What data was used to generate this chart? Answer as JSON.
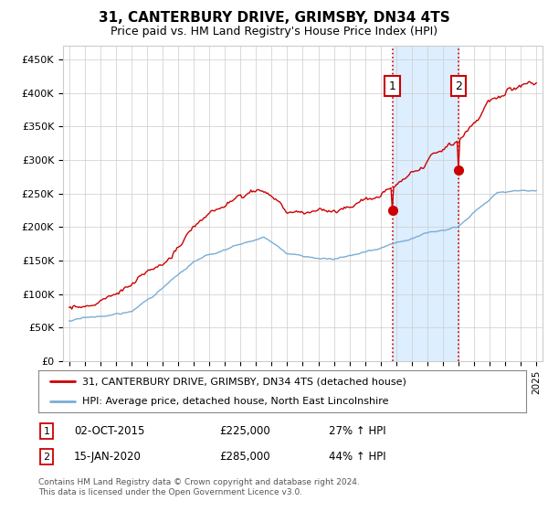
{
  "title": "31, CANTERBURY DRIVE, GRIMSBY, DN34 4TS",
  "subtitle": "Price paid vs. HM Land Registry's House Price Index (HPI)",
  "yticks": [
    0,
    50000,
    100000,
    150000,
    200000,
    250000,
    300000,
    350000,
    400000,
    450000
  ],
  "ytick_labels": [
    "£0",
    "£50K",
    "£100K",
    "£150K",
    "£200K",
    "£250K",
    "£300K",
    "£350K",
    "£400K",
    "£450K"
  ],
  "ylim": [
    0,
    470000
  ],
  "red_color": "#cc0000",
  "blue_color": "#7badd4",
  "shaded_color": "#ddeeff",
  "vline_color": "#cc0000",
  "legend1": "31, CANTERBURY DRIVE, GRIMSBY, DN34 4TS (detached house)",
  "legend2": "HPI: Average price, detached house, North East Lincolnshire",
  "annotation1_label": "1",
  "annotation1_date": "02-OCT-2015",
  "annotation1_price": "£225,000",
  "annotation1_hpi": "27% ↑ HPI",
  "annotation2_label": "2",
  "annotation2_date": "15-JAN-2020",
  "annotation2_price": "£285,000",
  "annotation2_hpi": "44% ↑ HPI",
  "footer": "Contains HM Land Registry data © Crown copyright and database right 2024.\nThis data is licensed under the Open Government Licence v3.0.",
  "background_color": "#ffffff",
  "grid_color": "#cccccc",
  "sale1_year": 2015.75,
  "sale1_price": 225000,
  "sale2_year": 2020.04,
  "sale2_price": 285000
}
